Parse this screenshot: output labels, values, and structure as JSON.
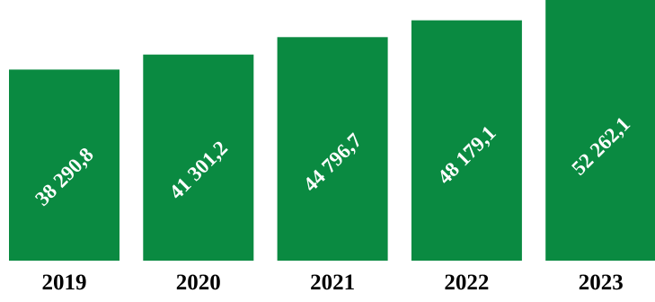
{
  "chart_data": {
    "type": "bar",
    "categories": [
      "2019",
      "2020",
      "2021",
      "2022",
      "2023"
    ],
    "values": [
      38290.8,
      41301.2,
      44796.7,
      48179.1,
      52262.1
    ],
    "data_labels": [
      "38 290,8",
      "41 301,2",
      "44 796,7",
      "48 179,1",
      "52 262,1"
    ],
    "bar_color": "#0a8a41",
    "label_color": "#ffffff",
    "category_label_color": "#000000",
    "grid": false,
    "legend": "none",
    "data_label_rotation_deg": -45
  }
}
